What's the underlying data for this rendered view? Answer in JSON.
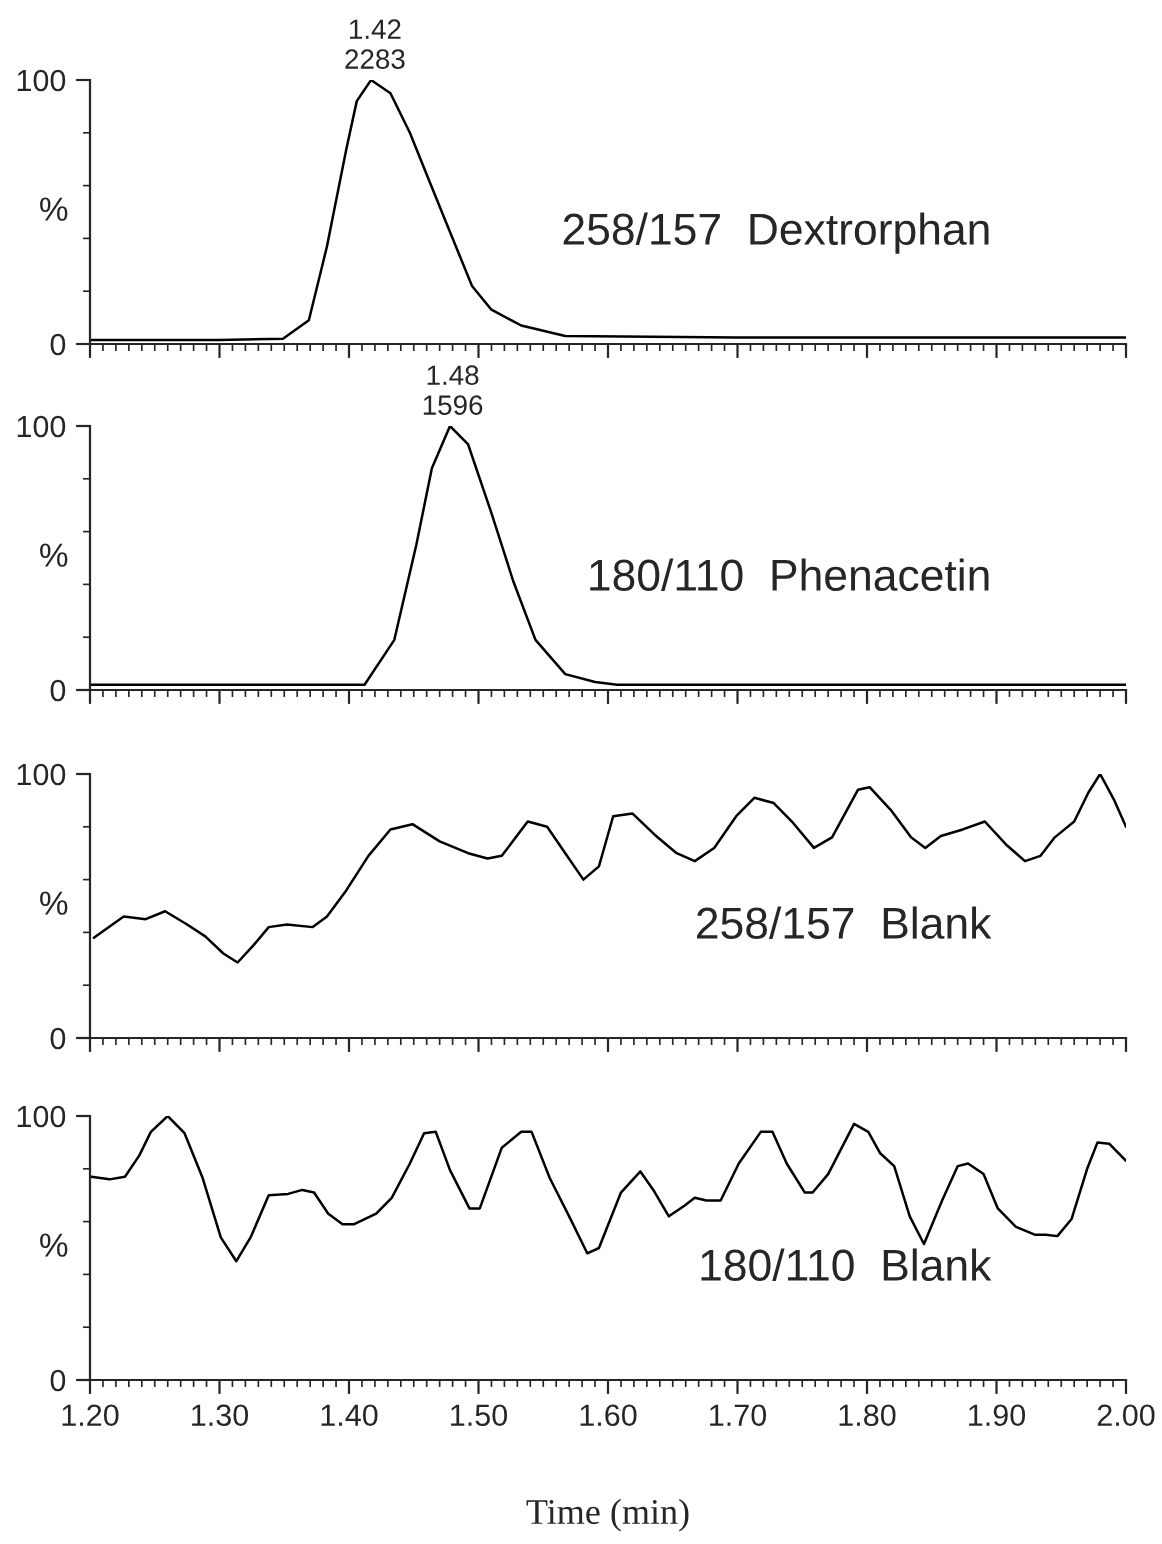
{
  "chart_data": [
    {
      "type": "line",
      "ylabel": "%",
      "annotations": [
        {
          "text": "1.42\n2283",
          "x": 1.42,
          "y": 100
        },
        "258/157  Dextrorphan"
      ],
      "xlim": [
        1.2,
        2.0
      ],
      "ylim": [
        0,
        100
      ],
      "yticks": [
        0,
        100
      ],
      "xticks": [
        1.2,
        1.3,
        1.4,
        1.5,
        1.6,
        1.7,
        1.8,
        1.9,
        2.0
      ],
      "tick_labels": "y",
      "grid": false,
      "series": [
        {
          "color": "#000000",
          "x": [
            1.2,
            1.3,
            1.349,
            1.369,
            1.383,
            1.398,
            1.406,
            1.417,
            1.432,
            1.447,
            1.461,
            1.475,
            1.495,
            1.51,
            1.533,
            1.567,
            1.7,
            1.85,
            2.0
          ],
          "values": [
            1.5,
            1.5,
            2,
            9,
            37,
            74,
            92,
            100,
            95,
            80,
            63,
            46,
            22,
            13,
            7,
            3,
            2.5,
            2.5,
            2.5
          ]
        }
      ]
    },
    {
      "type": "line",
      "ylabel": "%",
      "annotations": [
        {
          "text": "1.48\n1596",
          "x": 1.48,
          "y": 100
        },
        "180/110  Phenacetin"
      ],
      "xlim": [
        1.2,
        2.0
      ],
      "ylim": [
        0,
        100
      ],
      "yticks": [
        0,
        100
      ],
      "xticks": [
        1.2,
        1.3,
        1.4,
        1.5,
        1.6,
        1.7,
        1.8,
        1.9,
        2.0
      ],
      "tick_labels": "y",
      "grid": false,
      "series": [
        {
          "color": "#000000",
          "x": [
            1.2,
            1.3,
            1.4,
            1.412,
            1.435,
            1.452,
            1.464,
            1.478,
            1.492,
            1.51,
            1.527,
            1.544,
            1.567,
            1.59,
            1.607,
            1.7,
            1.85,
            2.0
          ],
          "values": [
            2,
            2,
            2,
            2,
            19,
            55,
            84,
            100,
            93,
            67,
            41,
            19,
            6,
            3,
            2,
            2,
            2,
            2
          ]
        }
      ]
    },
    {
      "type": "line",
      "ylabel": "%",
      "annotations": [
        "258/157  Blank"
      ],
      "xlim": [
        1.2,
        2.0
      ],
      "ylim": [
        0,
        100
      ],
      "yticks": [
        0,
        100
      ],
      "xticks": [
        1.2,
        1.3,
        1.4,
        1.5,
        1.6,
        1.7,
        1.8,
        1.9,
        2.0
      ],
      "tick_labels": "y",
      "grid": false,
      "series": [
        {
          "color": "#000000",
          "x": [
            1.203,
            1.226,
            1.243,
            1.258,
            1.275,
            1.289,
            1.303,
            1.314,
            1.326,
            1.338,
            1.352,
            1.372,
            1.383,
            1.398,
            1.415,
            1.432,
            1.449,
            1.47,
            1.492,
            1.507,
            1.518,
            1.538,
            1.553,
            1.567,
            1.581,
            1.593,
            1.604,
            1.619,
            1.636,
            1.653,
            1.667,
            1.682,
            1.699,
            1.713,
            1.728,
            1.742,
            1.759,
            1.773,
            1.793,
            1.802,
            1.819,
            1.834,
            1.845,
            1.857,
            1.874,
            1.891,
            1.908,
            1.922,
            1.934,
            1.945,
            1.96,
            1.971,
            1.98,
            1.991,
            2.0
          ],
          "values": [
            38,
            46,
            45,
            48,
            43,
            38.5,
            32,
            28.6,
            35,
            42,
            43,
            42,
            46,
            56,
            69,
            79,
            81,
            74.5,
            70,
            68,
            69,
            82,
            80,
            70,
            60,
            65,
            84,
            85,
            77,
            70,
            67,
            72,
            84,
            91,
            89,
            82,
            72,
            76,
            94,
            95,
            86,
            76,
            72,
            76.5,
            79,
            82,
            73,
            67,
            69,
            76,
            82,
            93,
            100,
            90,
            80
          ]
        }
      ]
    },
    {
      "type": "line",
      "ylabel": "%",
      "xlabel": "Time (min)",
      "annotations": [
        "180/110  Blank"
      ],
      "xlim": [
        1.2,
        2.0
      ],
      "ylim": [
        0,
        100
      ],
      "yticks": [
        0,
        100
      ],
      "xticks": [
        {
          "value": 1.2,
          "label": "1.20"
        },
        {
          "value": 1.3,
          "label": "1.30"
        },
        {
          "value": 1.4,
          "label": "1.40"
        },
        {
          "value": 1.5,
          "label": "1.50"
        },
        {
          "value": 1.6,
          "label": "1.60"
        },
        {
          "value": 1.7,
          "label": "1.70"
        },
        {
          "value": 1.8,
          "label": "1.80"
        },
        {
          "value": 1.9,
          "label": "1.90"
        },
        {
          "value": 2.0,
          "label": "2.00"
        }
      ],
      "grid": false,
      "series": [
        {
          "color": "#000000",
          "x": [
            1.201,
            1.215,
            1.227,
            1.238,
            1.247,
            1.26,
            1.273,
            1.287,
            1.301,
            1.313,
            1.324,
            1.338,
            1.353,
            1.364,
            1.373,
            1.384,
            1.395,
            1.404,
            1.421,
            1.433,
            1.447,
            1.458,
            1.467,
            1.478,
            1.493,
            1.501,
            1.518,
            1.533,
            1.541,
            1.555,
            1.57,
            1.584,
            1.593,
            1.61,
            1.625,
            1.635,
            1.647,
            1.659,
            1.667,
            1.676,
            1.687,
            1.701,
            1.718,
            1.727,
            1.738,
            1.752,
            1.758,
            1.77,
            1.79,
            1.801,
            1.81,
            1.821,
            1.833,
            1.844,
            1.858,
            1.87,
            1.878,
            1.89,
            1.901,
            1.915,
            1.93,
            1.938,
            1.947,
            1.958,
            1.97,
            1.978,
            1.987,
            2.0
          ],
          "values": [
            77,
            76,
            77,
            85,
            94,
            100,
            93.5,
            76.5,
            54,
            45,
            54,
            70,
            70.5,
            72,
            71,
            63,
            59,
            59,
            63,
            69,
            82,
            93.5,
            94,
            79.5,
            65,
            65,
            88,
            94,
            94,
            76.5,
            62,
            48,
            50,
            71,
            79,
            72,
            62,
            66,
            69,
            68,
            68,
            82,
            94,
            94,
            82,
            71,
            71,
            78,
            97,
            94,
            86,
            81,
            62,
            51.5,
            68,
            81,
            82,
            78,
            65,
            58,
            55,
            55,
            54.5,
            61,
            80,
            90,
            89.5,
            83
          ]
        }
      ]
    }
  ]
}
